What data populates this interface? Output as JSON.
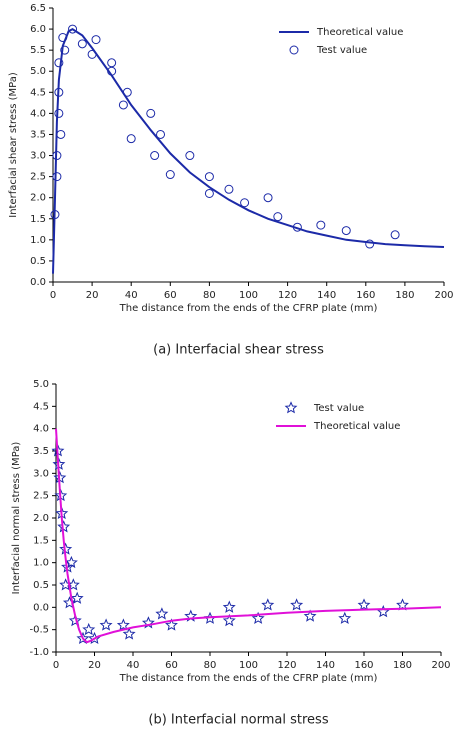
{
  "chart_data": [
    {
      "type": "line",
      "caption": "(a) Interfacial shear stress",
      "xlabel": "The distance from the ends of the CFRP plate (mm)",
      "ylabel": "Interfacial shear stress (MPa)",
      "xlim": [
        0,
        200
      ],
      "xticks": [
        0,
        20,
        40,
        60,
        80,
        100,
        120,
        140,
        160,
        180,
        200
      ],
      "ylim": [
        0,
        6.5
      ],
      "yticks": [
        {
          "value": 0,
          "label": "0.0"
        },
        0.5,
        {
          "value": 1,
          "label": "1.0"
        },
        1.5,
        {
          "value": 2,
          "label": "2.0"
        },
        2.5,
        {
          "value": 3,
          "label": "3.0"
        },
        3.5,
        {
          "value": 4,
          "label": "4.0"
        },
        4.5,
        {
          "value": 5,
          "label": "5.0"
        },
        5.5,
        {
          "value": 6,
          "label": "6.0"
        },
        6.5
      ],
      "legend": "upper right",
      "series": [
        {
          "name": "Theoretical value",
          "mode": "line",
          "color": "#1c2aa8",
          "x": [
            0,
            1,
            2,
            3,
            5,
            8,
            10,
            15,
            20,
            30,
            40,
            50,
            60,
            70,
            80,
            90,
            100,
            110,
            120,
            130,
            140,
            150,
            160,
            170,
            180,
            190,
            200
          ],
          "values": [
            0.2,
            2,
            3.8,
            4.8,
            5.6,
            5.95,
            6.0,
            5.85,
            5.55,
            4.9,
            4.2,
            3.6,
            3.05,
            2.6,
            2.25,
            1.95,
            1.7,
            1.5,
            1.35,
            1.2,
            1.1,
            1.0,
            0.95,
            0.9,
            0.87,
            0.85,
            0.83
          ]
        },
        {
          "name": "Test value",
          "mode": "markers",
          "marker": "circle",
          "color": "#1c2aa8",
          "x": [
            1,
            2,
            2,
            3,
            3,
            4,
            3,
            5,
            6,
            10,
            15,
            20,
            22,
            30,
            30,
            36,
            38,
            40,
            50,
            52,
            55,
            60,
            70,
            80,
            80,
            90,
            98,
            110,
            115,
            125,
            137,
            150,
            162,
            175
          ],
          "values": [
            1.6,
            2.5,
            3.0,
            4.5,
            4.0,
            3.5,
            5.2,
            5.8,
            5.5,
            6.0,
            5.65,
            5.4,
            5.75,
            5.0,
            5.2,
            4.2,
            4.5,
            3.4,
            4.0,
            3.0,
            3.5,
            2.55,
            3.0,
            2.5,
            2.1,
            2.2,
            1.88,
            2.0,
            1.55,
            1.3,
            1.35,
            1.22,
            0.9,
            1.12
          ]
        }
      ]
    },
    {
      "type": "line",
      "caption": "(b) Interfacial normal stress",
      "xlabel": "The distance from the ends of the CFRP plate (mm)",
      "ylabel": "Interfacial normal stress (MPa)",
      "xlim": [
        0,
        200
      ],
      "xticks": [
        0,
        20,
        40,
        60,
        80,
        100,
        120,
        140,
        160,
        180,
        200
      ],
      "ylim": [
        -1,
        5
      ],
      "yticks": [
        {
          "value": -1,
          "label": "-1.0"
        },
        -0.5,
        {
          "value": 0,
          "label": "0.0"
        },
        0.5,
        {
          "value": 1,
          "label": "1.0"
        },
        1.5,
        {
          "value": 2,
          "label": "2.0"
        },
        2.5,
        {
          "value": 3,
          "label": "3.0"
        },
        3.5,
        {
          "value": 4,
          "label": "4.0"
        },
        4.5,
        {
          "value": 5,
          "label": "5.0"
        }
      ],
      "legend": "upper right",
      "series": [
        {
          "name": "Test value",
          "mode": "markers",
          "marker": "star",
          "color": "#1c2aa8",
          "x": [
            1,
            1.5,
            2,
            2.5,
            3,
            4,
            5,
            5,
            6,
            7,
            8,
            9,
            10,
            11,
            14,
            17,
            20,
            26,
            35,
            38,
            48,
            55,
            60,
            70,
            80,
            90,
            90,
            105,
            110,
            125,
            132,
            150,
            160,
            170,
            180
          ],
          "values": [
            3.5,
            3.2,
            2.9,
            2.5,
            2.1,
            1.8,
            1.3,
            0.5,
            0.9,
            0.1,
            1.0,
            0.5,
            -0.3,
            0.2,
            -0.7,
            -0.5,
            -0.7,
            -0.4,
            -0.4,
            -0.6,
            -0.35,
            -0.15,
            -0.4,
            -0.2,
            -0.25,
            0.0,
            -0.3,
            -0.25,
            0.05,
            0.05,
            -0.2,
            -0.25,
            0.05,
            -0.1,
            0.05
          ]
        },
        {
          "name": "Theoretical value",
          "mode": "line",
          "color": "#e010d8",
          "x": [
            0,
            1,
            2,
            3,
            4,
            5,
            6,
            8,
            10,
            12,
            14,
            16,
            18,
            22,
            30,
            40,
            50,
            60,
            70,
            80,
            100,
            120,
            140,
            160,
            180,
            200
          ],
          "values": [
            4.0,
            3.3,
            2.6,
            2.0,
            1.5,
            1.1,
            0.75,
            0.2,
            -0.2,
            -0.5,
            -0.7,
            -0.78,
            -0.75,
            -0.65,
            -0.55,
            -0.45,
            -0.38,
            -0.3,
            -0.25,
            -0.22,
            -0.18,
            -0.12,
            -0.08,
            -0.05,
            -0.03,
            0.0
          ]
        }
      ]
    }
  ]
}
